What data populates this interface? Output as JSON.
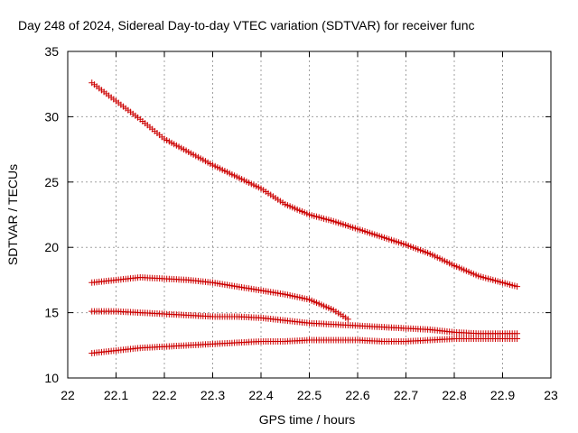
{
  "chart_data": {
    "type": "scatter",
    "title": "Day 248 of 2024, Sidereal Day-to-day VTEC variation (SDTVAR) for receiver func",
    "xlabel": "GPS time / hours",
    "ylabel": "SDTVAR / TECUs",
    "xlim": [
      22,
      23
    ],
    "ylim": [
      10,
      35
    ],
    "xticks": [
      "22",
      "22.1",
      "22.2",
      "22.3",
      "22.4",
      "22.5",
      "22.6",
      "22.7",
      "22.8",
      "22.9",
      "23"
    ],
    "yticks": [
      "10",
      "15",
      "20",
      "25",
      "30",
      "35"
    ],
    "grid": true,
    "marker": "plus",
    "color": "#cc0000",
    "series": [
      {
        "name": "series-1",
        "x": [
          22.05,
          22.1,
          22.15,
          22.2,
          22.25,
          22.3,
          22.35,
          22.4,
          22.45,
          22.5,
          22.55,
          22.6,
          22.65,
          22.7,
          22.75,
          22.8,
          22.85,
          22.9,
          22.93
        ],
        "y": [
          32.6,
          31.2,
          29.8,
          28.3,
          27.3,
          26.3,
          25.4,
          24.5,
          23.3,
          22.5,
          22.0,
          21.4,
          20.8,
          20.2,
          19.5,
          18.6,
          17.8,
          17.3,
          17.0
        ]
      },
      {
        "name": "series-2",
        "x": [
          22.05,
          22.1,
          22.15,
          22.2,
          22.25,
          22.3,
          22.35,
          22.4,
          22.45,
          22.5,
          22.55,
          22.58
        ],
        "y": [
          17.3,
          17.5,
          17.7,
          17.6,
          17.5,
          17.3,
          17.0,
          16.7,
          16.4,
          16.0,
          15.2,
          14.5
        ]
      },
      {
        "name": "series-3",
        "x": [
          22.05,
          22.1,
          22.15,
          22.2,
          22.25,
          22.3,
          22.35,
          22.4,
          22.45,
          22.5,
          22.55,
          22.6,
          22.65,
          22.7,
          22.75,
          22.8,
          22.85,
          22.9,
          22.93
        ],
        "y": [
          15.1,
          15.1,
          15.0,
          14.9,
          14.8,
          14.7,
          14.7,
          14.6,
          14.4,
          14.2,
          14.1,
          14.0,
          13.9,
          13.8,
          13.7,
          13.5,
          13.4,
          13.4,
          13.4
        ]
      },
      {
        "name": "series-4",
        "x": [
          22.05,
          22.1,
          22.15,
          22.2,
          22.25,
          22.3,
          22.35,
          22.4,
          22.45,
          22.5,
          22.55,
          22.6,
          22.65,
          22.7,
          22.75,
          22.8,
          22.85,
          22.9,
          22.93
        ],
        "y": [
          11.9,
          12.1,
          12.3,
          12.4,
          12.5,
          12.6,
          12.7,
          12.8,
          12.8,
          12.9,
          12.9,
          12.9,
          12.8,
          12.8,
          12.9,
          13.0,
          13.0,
          13.0,
          13.0
        ]
      }
    ]
  }
}
